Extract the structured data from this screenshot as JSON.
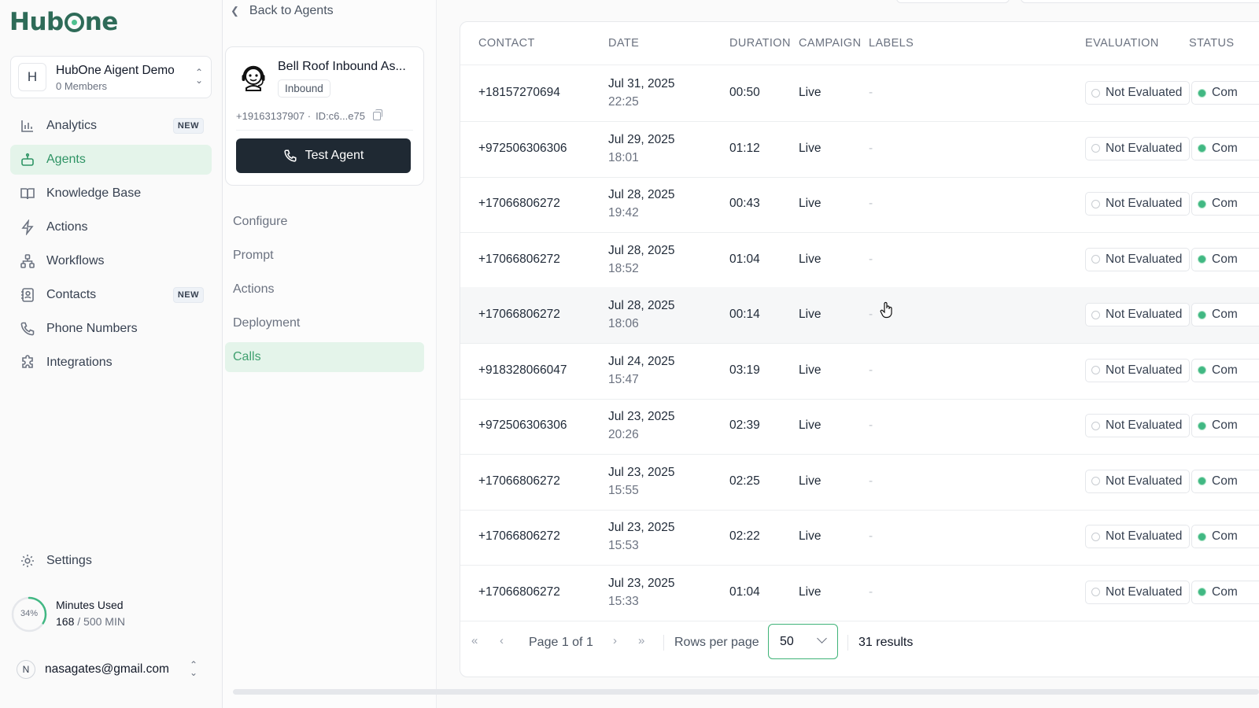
{
  "app": {
    "logo_left": "Hub",
    "logo_right": "ne"
  },
  "workspace": {
    "initial": "H",
    "name": "HubOne Aigent Demo",
    "members": "0 Members"
  },
  "nav": [
    {
      "label": "Analytics",
      "icon": "bar-chart-icon",
      "badge": "NEW",
      "active": false
    },
    {
      "label": "Agents",
      "icon": "robot-icon",
      "badge": "",
      "active": true
    },
    {
      "label": "Knowledge Base",
      "icon": "book-icon",
      "badge": "",
      "active": false
    },
    {
      "label": "Actions",
      "icon": "lightning-icon",
      "badge": "",
      "active": false
    },
    {
      "label": "Workflows",
      "icon": "workflow-icon",
      "badge": "",
      "active": false
    },
    {
      "label": "Contacts",
      "icon": "contact-book-icon",
      "badge": "NEW",
      "active": false
    },
    {
      "label": "Phone Numbers",
      "icon": "phone-icon",
      "badge": "",
      "active": false
    },
    {
      "label": "Integrations",
      "icon": "puzzle-icon",
      "badge": "",
      "active": false
    }
  ],
  "settings_label": "Settings",
  "usage": {
    "percent_label": "34%",
    "percent": 34,
    "title": "Minutes Used",
    "used": "168",
    "limit": "/ 500 MIN"
  },
  "account": {
    "initial": "N",
    "email": "nasagates@gmail.com"
  },
  "agent": {
    "back_label": "Back to Agents",
    "name": "Bell Roof Inbound As...",
    "tag": "Inbound",
    "phone": "+19163137907 ·",
    "id": "ID:c6...e75",
    "test_button": "Test Agent"
  },
  "sub_nav": [
    {
      "label": "Configure",
      "active": false
    },
    {
      "label": "Prompt",
      "active": false
    },
    {
      "label": "Actions",
      "active": false
    },
    {
      "label": "Deployment",
      "active": false
    },
    {
      "label": "Calls",
      "active": true
    }
  ],
  "table": {
    "headers": {
      "contact": "CONTACT",
      "date": "DATE",
      "duration": "DURATION",
      "campaign": "CAMPAIGN",
      "labels": "LABELS",
      "evaluation": "EVALUATION",
      "status": "STATUS"
    },
    "rows": [
      {
        "contact": "+18157270694",
        "date": "Jul 31, 2025",
        "time": "22:25",
        "duration": "00:50",
        "campaign": "Live",
        "labels": "-",
        "evaluation": "Not Evaluated",
        "status": "Com"
      },
      {
        "contact": "+972506306306",
        "date": "Jul 29, 2025",
        "time": "18:01",
        "duration": "01:12",
        "campaign": "Live",
        "labels": "-",
        "evaluation": "Not Evaluated",
        "status": "Com"
      },
      {
        "contact": "+17066806272",
        "date": "Jul 28, 2025",
        "time": "19:42",
        "duration": "00:43",
        "campaign": "Live",
        "labels": "-",
        "evaluation": "Not Evaluated",
        "status": "Com"
      },
      {
        "contact": "+17066806272",
        "date": "Jul 28, 2025",
        "time": "18:52",
        "duration": "01:04",
        "campaign": "Live",
        "labels": "-",
        "evaluation": "Not Evaluated",
        "status": "Com"
      },
      {
        "contact": "+17066806272",
        "date": "Jul 28, 2025",
        "time": "18:06",
        "duration": "00:14",
        "campaign": "Live",
        "labels": "-",
        "evaluation": "Not Evaluated",
        "status": "Com",
        "hover": true
      },
      {
        "contact": "+918328066047",
        "date": "Jul 24, 2025",
        "time": "15:47",
        "duration": "03:19",
        "campaign": "Live",
        "labels": "-",
        "evaluation": "Not Evaluated",
        "status": "Com"
      },
      {
        "contact": "+972506306306",
        "date": "Jul 23, 2025",
        "time": "20:26",
        "duration": "02:39",
        "campaign": "Live",
        "labels": "-",
        "evaluation": "Not Evaluated",
        "status": "Com"
      },
      {
        "contact": "+17066806272",
        "date": "Jul 23, 2025",
        "time": "15:55",
        "duration": "02:25",
        "campaign": "Live",
        "labels": "-",
        "evaluation": "Not Evaluated",
        "status": "Com"
      },
      {
        "contact": "+17066806272",
        "date": "Jul 23, 2025",
        "time": "15:53",
        "duration": "02:22",
        "campaign": "Live",
        "labels": "-",
        "evaluation": "Not Evaluated",
        "status": "Com"
      },
      {
        "contact": "+17066806272",
        "date": "Jul 23, 2025",
        "time": "15:33",
        "duration": "01:04",
        "campaign": "Live",
        "labels": "-",
        "evaluation": "Not Evaluated",
        "status": "Com"
      }
    ]
  },
  "pagination": {
    "page_label": "Page 1 of 1",
    "rows_per_page_label": "Rows per page",
    "rows_per_page_value": "50",
    "results": "31 results"
  },
  "colors": {
    "brand": "#2e6b58",
    "accent_green": "#3fb378",
    "active_bg": "#e4f4ea",
    "status_dot": "#41b883"
  }
}
